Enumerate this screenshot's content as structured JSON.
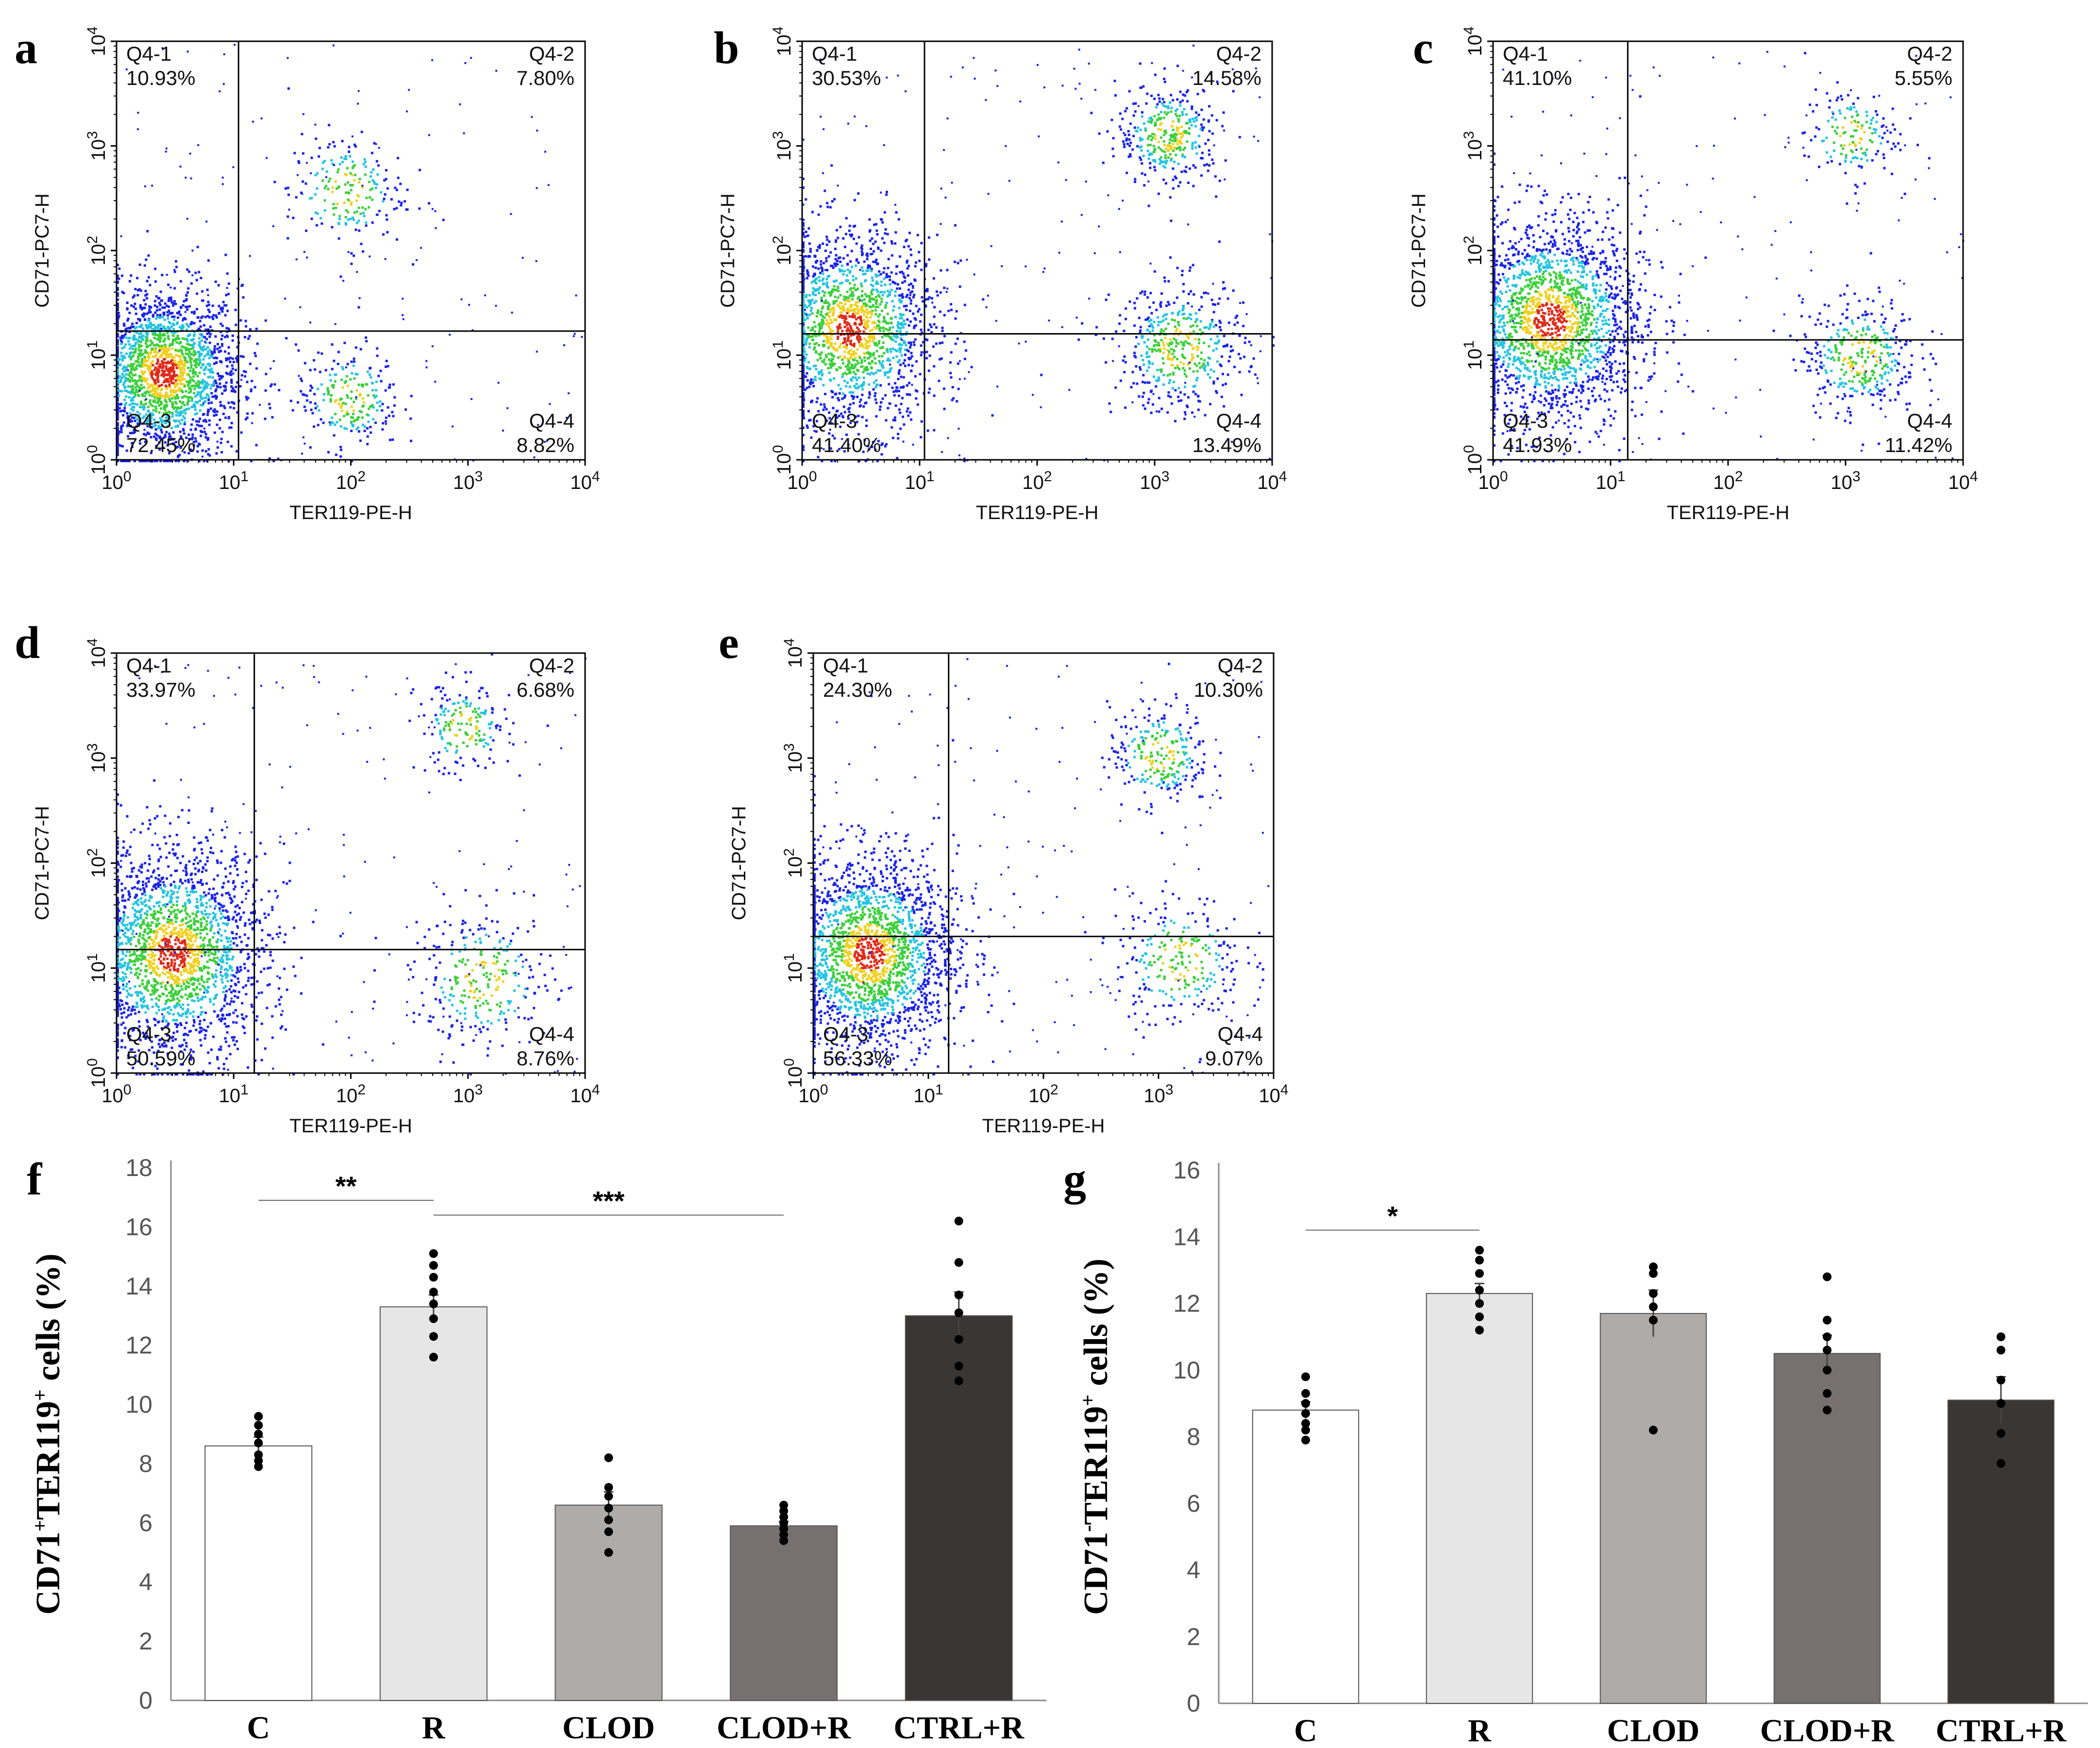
{
  "colors": {
    "dot_low": "#1a22e8",
    "dot_mid1": "#24c4e0",
    "dot_mid2": "#3ccf3c",
    "dot_high1": "#f0d020",
    "dot_high2": "#e02a18",
    "gate": "#000000",
    "bar_C": "#ffffff",
    "bar_R": "#e6e6e6",
    "bar_CLOD": "#afaba8",
    "bar_CLOD_R": "#767170",
    "bar_CTRL_R": "#3a3633"
  },
  "chart_data": [
    {
      "type": "scatter",
      "panel": "a",
      "xlabel": "TER119-PE-H",
      "ylabel": "CD71-PC7-H",
      "axis_scale": "log",
      "xlim": [
        1,
        10000
      ],
      "ylim": [
        1,
        10000
      ],
      "x_gate": 11,
      "y_gate": 17,
      "quadrants": [
        {
          "name": "Q4-1",
          "pct": "10.93%"
        },
        {
          "name": "Q4-2",
          "pct": "7.80%"
        },
        {
          "name": "Q4-3",
          "pct": "72.45%"
        },
        {
          "name": "Q4-4",
          "pct": "8.82%"
        }
      ],
      "populations": [
        {
          "x": 2.5,
          "y": 7,
          "spread": 0.33,
          "weight": 0.78
        },
        {
          "x": 90,
          "y": 380,
          "spread": 0.25,
          "weight": 0.08
        },
        {
          "x": 95,
          "y": 4,
          "spread": 0.22,
          "weight": 0.09
        }
      ]
    },
    {
      "type": "scatter",
      "panel": "b",
      "xlabel": "TER119-PE-H",
      "ylabel": "CD71-PC7-H",
      "axis_scale": "log",
      "xlim": [
        1,
        10000
      ],
      "ylim": [
        1,
        10000
      ],
      "x_gate": 11,
      "y_gate": 16,
      "quadrants": [
        {
          "name": "Q4-1",
          "pct": "30.53%"
        },
        {
          "name": "Q4-2",
          "pct": "14.58%"
        },
        {
          "name": "Q4-3",
          "pct": "41.40%"
        },
        {
          "name": "Q4-4",
          "pct": "13.49%"
        }
      ],
      "populations": [
        {
          "x": 2.5,
          "y": 18,
          "spread": 0.38,
          "weight": 0.68
        },
        {
          "x": 1300,
          "y": 1300,
          "spread": 0.22,
          "weight": 0.14
        },
        {
          "x": 1600,
          "y": 12,
          "spread": 0.28,
          "weight": 0.18
        }
      ]
    },
    {
      "type": "scatter",
      "panel": "c",
      "xlabel": "TER119-PE-H",
      "ylabel": "CD71-PC7-H",
      "axis_scale": "log",
      "xlim": [
        1,
        10000
      ],
      "ylim": [
        1,
        10000
      ],
      "x_gate": 14,
      "y_gate": 14,
      "quadrants": [
        {
          "name": "Q4-1",
          "pct": "41.10%"
        },
        {
          "name": "Q4-2",
          "pct": "5.55%"
        },
        {
          "name": "Q4-3",
          "pct": "41.93%"
        },
        {
          "name": "Q4-4",
          "pct": "11.42%"
        }
      ],
      "populations": [
        {
          "x": 3,
          "y": 22,
          "spread": 0.4,
          "weight": 0.8
        },
        {
          "x": 1100,
          "y": 1300,
          "spread": 0.2,
          "weight": 0.06
        },
        {
          "x": 1300,
          "y": 10,
          "spread": 0.25,
          "weight": 0.14
        }
      ]
    },
    {
      "type": "scatter",
      "panel": "d",
      "xlabel": "TER119-PE-H",
      "ylabel": "CD71-PC7-H",
      "axis_scale": "log",
      "xlim": [
        1,
        10000
      ],
      "ylim": [
        1,
        10000
      ],
      "x_gate": 15,
      "y_gate": 15,
      "quadrants": [
        {
          "name": "Q4-1",
          "pct": "33.97%"
        },
        {
          "name": "Q4-2",
          "pct": "6.68%"
        },
        {
          "name": "Q4-3",
          "pct": "50.59%"
        },
        {
          "name": "Q4-4",
          "pct": "8.76%"
        }
      ],
      "populations": [
        {
          "x": 3,
          "y": 14,
          "spread": 0.4,
          "weight": 0.82
        },
        {
          "x": 900,
          "y": 2000,
          "spread": 0.2,
          "weight": 0.07
        },
        {
          "x": 1300,
          "y": 8,
          "spread": 0.3,
          "weight": 0.11
        }
      ]
    },
    {
      "type": "scatter",
      "panel": "e",
      "xlabel": "TER119-PE-H",
      "ylabel": "CD71-PC7-H",
      "axis_scale": "log",
      "xlim": [
        1,
        10000
      ],
      "ylim": [
        1,
        10000
      ],
      "x_gate": 15,
      "y_gate": 20,
      "quadrants": [
        {
          "name": "Q4-1",
          "pct": "24.30%"
        },
        {
          "name": "Q4-2",
          "pct": "10.30%"
        },
        {
          "name": "Q4-3",
          "pct": "56.33%"
        },
        {
          "name": "Q4-4",
          "pct": "9.07%"
        }
      ],
      "populations": [
        {
          "x": 3,
          "y": 14,
          "spread": 0.38,
          "weight": 0.8
        },
        {
          "x": 1000,
          "y": 1100,
          "spread": 0.22,
          "weight": 0.1
        },
        {
          "x": 1500,
          "y": 12,
          "spread": 0.28,
          "weight": 0.1
        }
      ]
    },
    {
      "type": "bar",
      "panel": "f",
      "ylabel": "CD71+TER119+ cells (%)",
      "ylim": [
        0,
        18
      ],
      "yticks": [
        0,
        2,
        4,
        6,
        8,
        10,
        12,
        14,
        16,
        18
      ],
      "categories": [
        "C",
        "R",
        "CLOD",
        "CLOD+R",
        "CTRL+R"
      ],
      "values": [
        8.6,
        13.3,
        6.6,
        5.9,
        13.0
      ],
      "errors": [
        0.3,
        0.4,
        0.45,
        0.15,
        0.8
      ],
      "points": [
        [
          9.6,
          9.3,
          9.0,
          8.7,
          8.3,
          8.1,
          7.9
        ],
        [
          15.1,
          14.7,
          14.3,
          13.8,
          13.4,
          12.9,
          12.3,
          11.6
        ],
        [
          8.2,
          7.2,
          6.9,
          6.5,
          6.1,
          5.7,
          5.0
        ],
        [
          6.6,
          6.4,
          6.2,
          6.0,
          5.8,
          5.6,
          5.4
        ],
        [
          16.2,
          14.8,
          13.7,
          13.1,
          12.2,
          11.3,
          10.8
        ]
      ],
      "significance": [
        {
          "from": 0,
          "to": 1,
          "label": "**",
          "y": 16.9
        },
        {
          "from": 1,
          "to": 3,
          "label": "***",
          "y": 16.4
        }
      ]
    },
    {
      "type": "bar",
      "panel": "g",
      "ylabel": "CD71-TER119+ cells (%)",
      "ylim": [
        0,
        16
      ],
      "yticks": [
        0,
        2,
        4,
        6,
        8,
        10,
        12,
        14,
        16
      ],
      "categories": [
        "C",
        "R",
        "CLOD",
        "CLOD+R",
        "CTRL+R"
      ],
      "values": [
        8.8,
        12.3,
        11.7,
        10.5,
        9.1
      ],
      "errors": [
        0.25,
        0.3,
        0.7,
        0.55,
        0.7
      ],
      "points": [
        [
          9.8,
          9.3,
          9.0,
          8.7,
          8.4,
          8.2,
          7.9
        ],
        [
          13.6,
          13.3,
          12.9,
          12.4,
          12.0,
          11.6,
          11.2
        ],
        [
          13.1,
          12.9,
          12.3,
          11.9,
          11.5,
          8.2
        ],
        [
          12.8,
          11.5,
          11.0,
          10.6,
          10.0,
          9.3,
          8.8
        ],
        [
          11.0,
          10.6,
          9.7,
          9.0,
          8.1,
          7.2
        ]
      ],
      "significance": [
        {
          "from": 0,
          "to": 1,
          "label": "*",
          "y": 14.2
        }
      ]
    }
  ]
}
